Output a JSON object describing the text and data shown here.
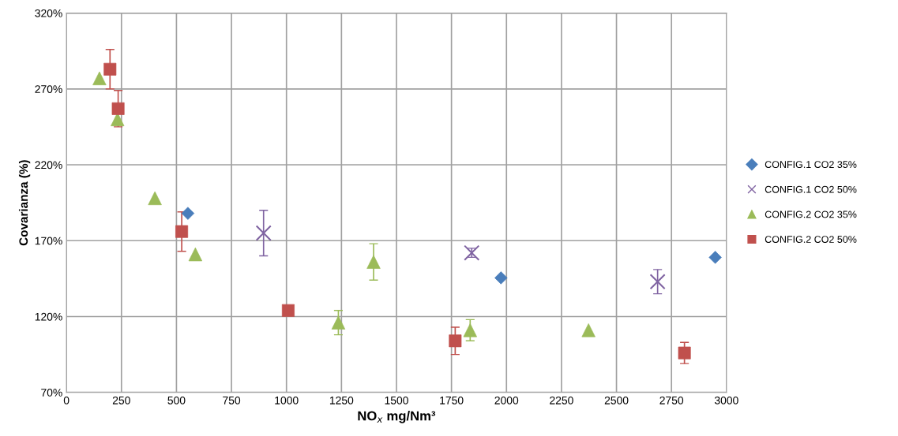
{
  "chart_data": {
    "type": "scatter",
    "xlabel": "NO$_{x}$ mg/Nm³",
    "ylabel": "Covarianza (%)",
    "xlim": [
      0,
      3000
    ],
    "xticks": [
      0,
      250,
      500,
      750,
      1000,
      1250,
      1500,
      1750,
      2000,
      2250,
      2500,
      2750,
      3000
    ],
    "ylim": [
      70,
      320
    ],
    "yticks": [
      {
        "value": 70,
        "label": "70%"
      },
      {
        "value": 120,
        "label": "120%"
      },
      {
        "value": 170,
        "label": "170%"
      },
      {
        "value": 220,
        "label": "220%"
      },
      {
        "value": 270,
        "label": "270%"
      },
      {
        "value": 320,
        "label": "320%"
      }
    ],
    "grid": true,
    "legend": "right",
    "series": [
      {
        "name": "CONFIG.1 CO2 35%",
        "color": "#4a7ebb",
        "marker": "diamond",
        "x": [
          552,
          1975,
          2949
        ],
        "values": [
          188,
          145.5,
          159
        ]
      },
      {
        "name": "CONFIG.1 CO2 50%",
        "color": "#8064a2",
        "marker": "cross",
        "x": [
          896,
          1842,
          2687
        ],
        "values": [
          175,
          162,
          143
        ],
        "errors": [
          15,
          3,
          8
        ]
      },
      {
        "name": "CONFIG.2 CO2 35%",
        "color": "#9bbb59",
        "marker": "triangle",
        "x": [
          150,
          232,
          402,
          586,
          1236,
          1396,
          1835,
          2373
        ],
        "values": [
          277,
          250,
          198,
          161,
          116,
          156,
          111,
          111
        ],
        "errors": [
          null,
          null,
          null,
          null,
          8,
          12,
          7,
          null
        ]
      },
      {
        "name": "CONFIG.2 CO2 50%",
        "color": "#c0504d",
        "marker": "square",
        "x": [
          198,
          235,
          524,
          1008,
          1767,
          2809
        ],
        "values": [
          283,
          257,
          176,
          124,
          104,
          96
        ],
        "errors": [
          13,
          12,
          13,
          1,
          9,
          7
        ]
      }
    ]
  }
}
